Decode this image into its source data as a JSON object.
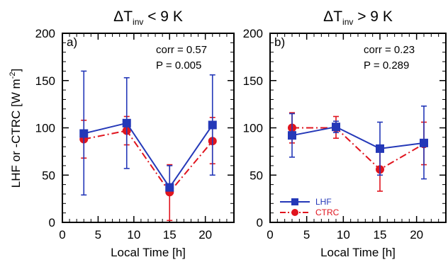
{
  "figure": {
    "ylabel": "LHF or -CTRC [W m⁻²]",
    "ylabel_main": "LHF or -CTRC [W m",
    "ylabel_sup": "-2",
    "ylabel_end": "]"
  },
  "colors": {
    "lhf": "#2438b8",
    "ctrc": "#e0141e",
    "axis": "#000000"
  },
  "chart_data": [
    {
      "type": "line",
      "panel": "a)",
      "title": "ΔT_inv < 9 K",
      "title_parts": {
        "delta": "ΔT",
        "sub": "inv",
        "rest": " < 9 K"
      },
      "xlabel": "Local Time [h]",
      "ylabel": "LHF or -CTRC [W m⁻²]",
      "xlim": [
        0,
        24
      ],
      "ylim": [
        0,
        200
      ],
      "xticks": [
        0,
        5,
        10,
        15,
        20
      ],
      "yticks": [
        0,
        50,
        100,
        150,
        200
      ],
      "annotations": [
        "corr = 0.57",
        "P = 0.005"
      ],
      "grid": false,
      "series": [
        {
          "name": "LHF",
          "x": [
            3,
            9,
            15,
            21
          ],
          "y": [
            94,
            105,
            37,
            103
          ],
          "err_low": [
            29,
            57,
            34,
            50
          ],
          "err_high": [
            160,
            153,
            60,
            156
          ],
          "marker": "square",
          "line": "solid"
        },
        {
          "name": "CTRC",
          "x": [
            3,
            9,
            15,
            21
          ],
          "y": [
            88,
            97,
            32,
            86
          ],
          "err_low": [
            68,
            82,
            2,
            62
          ],
          "err_high": [
            108,
            112,
            61,
            111
          ],
          "marker": "circle",
          "line": "dashdot"
        }
      ]
    },
    {
      "type": "line",
      "panel": "b)",
      "title": "ΔT_inv > 9 K",
      "title_parts": {
        "delta": "ΔT",
        "sub": "inv",
        "rest": " > 9 K"
      },
      "xlabel": "Local Time [h]",
      "ylabel": "",
      "xlim": [
        0,
        24
      ],
      "ylim": [
        0,
        200
      ],
      "xticks": [
        0,
        5,
        10,
        15,
        20
      ],
      "yticks": [
        0,
        50,
        100,
        150,
        200
      ],
      "annotations": [
        "corr = 0.23",
        "P = 0.289"
      ],
      "legend": {
        "placement": "lower-left",
        "entries": [
          "LHF",
          "CTRC"
        ]
      },
      "grid": false,
      "series": [
        {
          "name": "LHF",
          "x": [
            3,
            9,
            15,
            21
          ],
          "y": [
            92,
            101,
            78,
            84
          ],
          "err_low": [
            69,
            95,
            50,
            46
          ],
          "err_high": [
            115,
            107,
            106,
            123
          ],
          "marker": "square",
          "line": "solid"
        },
        {
          "name": "CTRC",
          "x": [
            3,
            9,
            15,
            21
          ],
          "y": [
            100,
            100,
            56,
            83
          ],
          "err_low": [
            84,
            89,
            33,
            61
          ],
          "err_high": [
            116,
            112,
            79,
            106
          ],
          "marker": "circle",
          "line": "dashdot"
        }
      ]
    }
  ]
}
